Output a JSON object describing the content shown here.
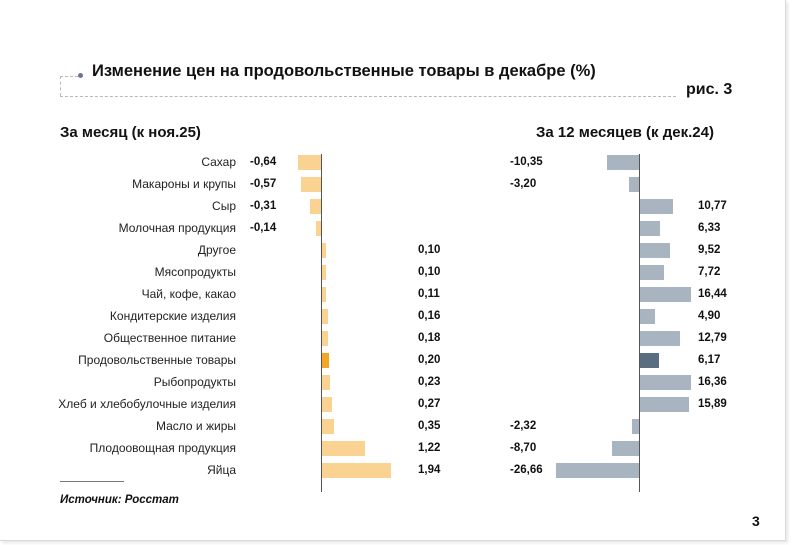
{
  "title": "Изменение цен на продовольственные товары в декабре (%)",
  "figure_label": "рис. 3",
  "source": "Источник: Росстат",
  "page_number": "3",
  "colors": {
    "month_bar": "#fad291",
    "month_highlight": "#f5a623",
    "year_bar": "#a8b4c0",
    "year_highlight": "#5a6e82"
  },
  "chart_data": {
    "type": "bar",
    "orientation": "horizontal",
    "highlight_category": "Продовольственные товары",
    "categories": [
      "Сахар",
      "Макароны и крупы",
      "Сыр",
      "Молочная продукция",
      "Другое",
      "Мясопродукты",
      "Чай, кофе, какао",
      "Кондитерские изделия",
      "Общественное питание",
      "Продовольственные товары",
      "Рыбопродукты",
      "Хлеб и хлебобулочные изделия",
      "Масло и жиры",
      "Плодоовощная продукция",
      "Яйца"
    ],
    "series": [
      {
        "name": "За месяц (к ноя.25)",
        "values": [
          -0.64,
          -0.57,
          -0.31,
          -0.14,
          0.1,
          0.1,
          0.11,
          0.16,
          0.18,
          0.2,
          0.23,
          0.27,
          0.35,
          1.22,
          1.94
        ],
        "labels": [
          "-0,64",
          "-0,57",
          "-0,31",
          "-0,14",
          "0,10",
          "0,10",
          "0,11",
          "0,16",
          "0,18",
          "0,20",
          "0,23",
          "0,27",
          "0,35",
          "1,22",
          "1,94"
        ]
      },
      {
        "name": "За 12 месяцев (к дек.24)",
        "values": [
          -10.35,
          -3.2,
          10.77,
          6.33,
          9.52,
          7.72,
          16.44,
          4.9,
          12.79,
          6.17,
          16.36,
          15.89,
          -2.32,
          -8.7,
          -26.66
        ],
        "labels": [
          "-10,35",
          "-3,20",
          "10,77",
          "6,33",
          "9,52",
          "7,72",
          "16,44",
          "4,90",
          "12,79",
          "6,17",
          "16,36",
          "15,89",
          "-2,32",
          "-8,70",
          "-26,66"
        ]
      }
    ]
  }
}
